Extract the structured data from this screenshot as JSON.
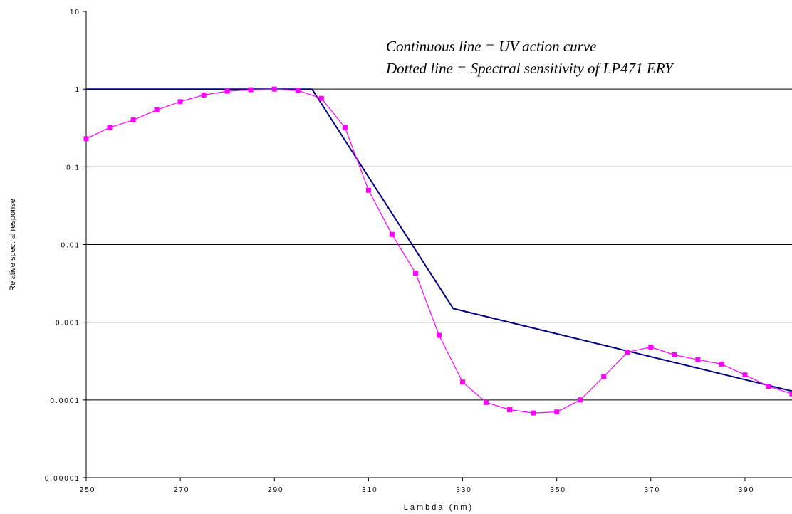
{
  "chart_data": {
    "type": "line",
    "title": "",
    "xlabel": "Lambda (nm)",
    "ylabel": "Relative spectral response",
    "xlim": [
      250,
      400
    ],
    "ylim": [
      1e-05,
      10
    ],
    "yscale": "log",
    "grid": "horizontal",
    "x_ticks": [
      "250",
      "270",
      "290",
      "310",
      "330",
      "350",
      "370",
      "390"
    ],
    "y_ticks": [
      "10",
      "1",
      "0.1",
      "0.01",
      "0.001",
      "0.0001",
      "0.00001"
    ],
    "annotations": [
      "Continuous line  = UV action curve",
      "Dotted line = Spectral sensitivity of LP471 ERY"
    ],
    "series": [
      {
        "color": "#000080",
        "style": "solid",
        "x": [
          250,
          298,
          328,
          400
        ],
        "y": [
          1,
          1,
          0.0015,
          0.00013
        ]
      },
      {
        "color": "#ff00ff",
        "style": "line-with-square-markers",
        "x": [
          250,
          255,
          260,
          265,
          270,
          275,
          280,
          285,
          290,
          295,
          300,
          305,
          310,
          315,
          320,
          325,
          330,
          335,
          340,
          345,
          350,
          355,
          360,
          365,
          370,
          375,
          380,
          385,
          390,
          395,
          400
        ],
        "y": [
          0.23,
          0.32,
          0.4,
          0.54,
          0.69,
          0.84,
          0.94,
          0.98,
          1.0,
          0.96,
          0.76,
          0.32,
          0.05,
          0.0135,
          0.0043,
          0.00068,
          0.00017,
          9.3e-05,
          7.5e-05,
          6.8e-05,
          7e-05,
          0.0001,
          0.0002,
          0.00041,
          0.00048,
          0.00038,
          0.00033,
          0.00029,
          0.00021,
          0.00015,
          0.00012
        ]
      }
    ]
  }
}
